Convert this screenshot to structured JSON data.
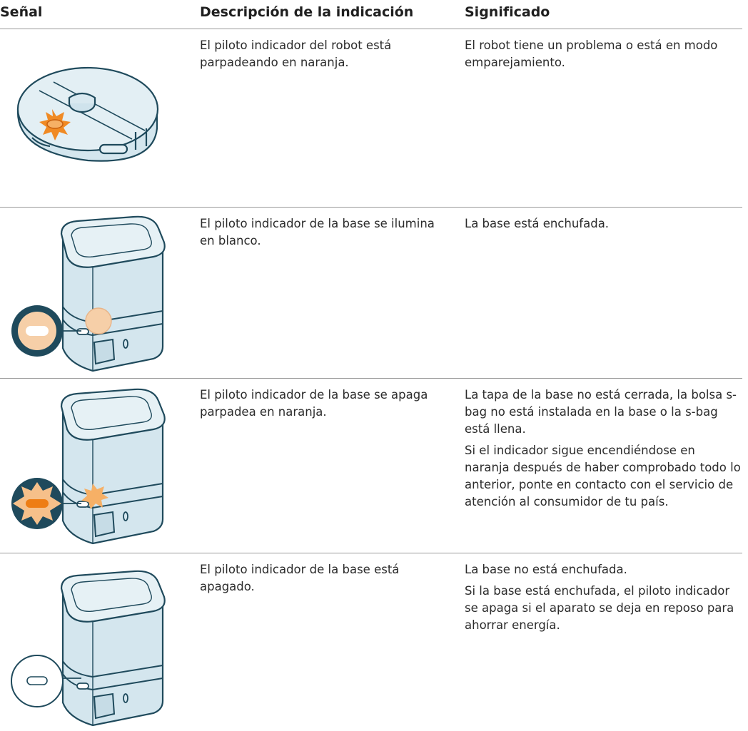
{
  "table": {
    "header": [
      "Señal",
      "Descripción de la indicación",
      "Significado"
    ],
    "rows": [
      {
        "description": "El piloto indicador del robot está parpadeando en naranja.",
        "meaning": [
          "El robot tiene un problema o está en modo emparejamiento."
        ]
      },
      {
        "description": "El piloto indicador de la base se ilumina en blanco.",
        "meaning": [
          "La base está enchufada."
        ]
      },
      {
        "description": "El piloto indicador de la base se apaga parpadea en naranja.",
        "meaning": [
          "La tapa de la base no está cerrada, la bolsa s-bag no está instalada en la base o la s-bag está llena.",
          "Si el indicador sigue encendiéndose en naranja después de haber comprobado todo lo anterior, ponte en contacto con el servicio de atención al consumidor de tu país."
        ]
      },
      {
        "description": "El piloto indicador de la base está apagado.",
        "meaning": [
          "La base no está enchufada.",
          "Si la base está enchufada, el piloto indicador se apaga si el aparato se deja en reposo para ahorrar energía."
        ]
      }
    ]
  }
}
